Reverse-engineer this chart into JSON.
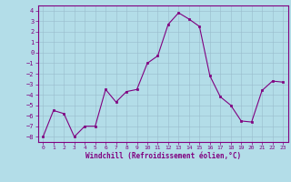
{
  "x": [
    0,
    1,
    2,
    3,
    4,
    5,
    6,
    7,
    8,
    9,
    10,
    11,
    12,
    13,
    14,
    15,
    16,
    17,
    18,
    19,
    20,
    21,
    22,
    23
  ],
  "y": [
    -8,
    -5.5,
    -5.8,
    -8,
    -7,
    -7,
    -3.5,
    -4.7,
    -3.7,
    -3.5,
    -1.0,
    -0.3,
    2.7,
    3.8,
    3.2,
    2.5,
    -2.2,
    -4.2,
    -5.0,
    -6.5,
    -6.6,
    -3.6,
    -2.7,
    -2.8
  ],
  "line_color": "#800080",
  "marker_color": "#800080",
  "bg_color": "#b3dde8",
  "grid_color": "#99bbcc",
  "xlabel": "Windchill (Refroidissement éolien,°C)",
  "xlabel_color": "#800080",
  "tick_color": "#800080",
  "label_color": "#800080",
  "ylim": [
    -8.5,
    4.5
  ],
  "xlim": [
    -0.5,
    23.5
  ],
  "yticks": [
    -8,
    -7,
    -6,
    -5,
    -4,
    -3,
    -2,
    -1,
    0,
    1,
    2,
    3,
    4
  ],
  "xticks": [
    0,
    1,
    2,
    3,
    4,
    5,
    6,
    7,
    8,
    9,
    10,
    11,
    12,
    13,
    14,
    15,
    16,
    17,
    18,
    19,
    20,
    21,
    22,
    23
  ],
  "figsize": [
    3.2,
    2.0
  ],
  "dpi": 100
}
